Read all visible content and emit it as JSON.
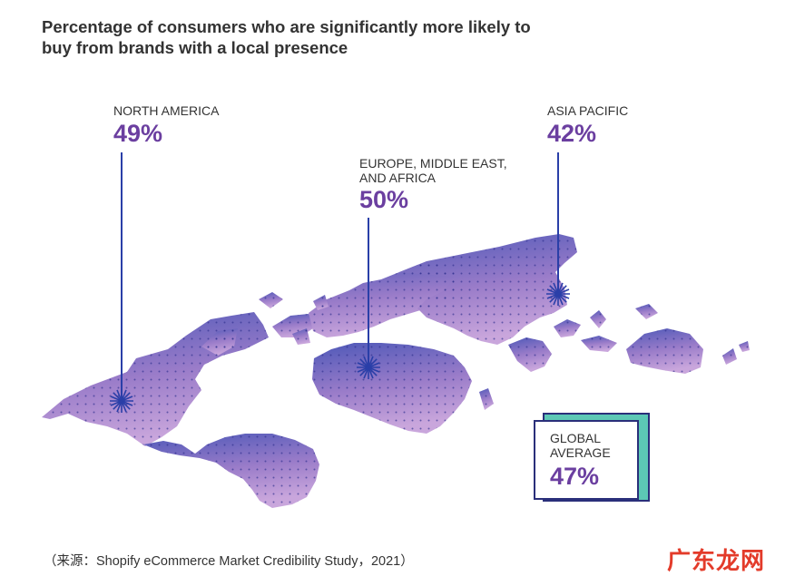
{
  "chart_data": {
    "type": "map",
    "title": "Percentage of consumers who are significantly more likely to buy from brands with a local presence",
    "regions": [
      {
        "name": "NORTH AMERICA",
        "value_label": "49%",
        "value": 49
      },
      {
        "name": "EUROPE, MIDDLE EAST, AND AFRICA",
        "name_lines": [
          "EUROPE, MIDDLE EAST,",
          "AND AFRICA"
        ],
        "value_label": "50%",
        "value": 50
      },
      {
        "name": "ASIA PACIFIC",
        "value_label": "42%",
        "value": 42
      }
    ],
    "global": {
      "label_lines": [
        "GLOBAL",
        "AVERAGE"
      ],
      "value_label": "47%",
      "value": 47
    }
  },
  "colors": {
    "accent": "#6b3fa0",
    "marker": "#2a3fa8",
    "map_top": "#4d58b8",
    "map_bottom": "#c79bd8",
    "box_accent": "#5cc8b5"
  },
  "source": "（来源：Shopify eCommerce Market Credibility Study，2021）",
  "watermark": "广东龙网"
}
